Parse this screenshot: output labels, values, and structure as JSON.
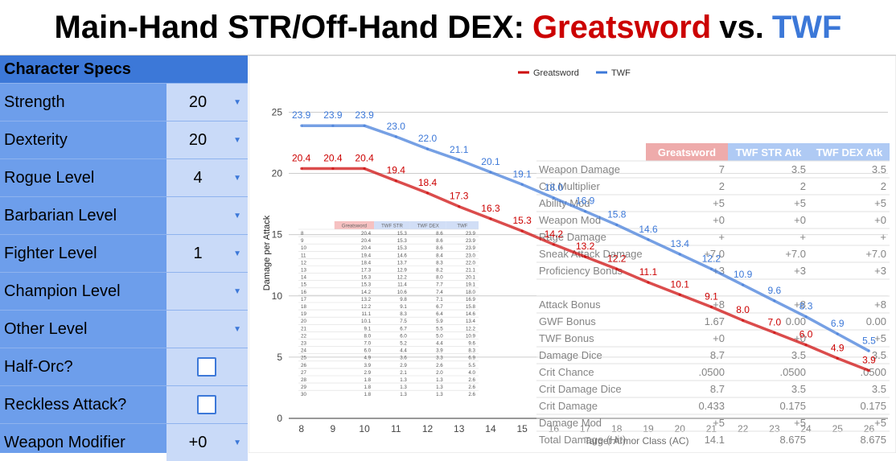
{
  "title": {
    "prefix": "Main-Hand STR/Off-Hand DEX:",
    "greatsword": "Greatsword",
    "vs": "vs.",
    "twf": "TWF"
  },
  "specs": {
    "header": "Character Specs",
    "rows": [
      {
        "label": "Strength",
        "value": "20",
        "type": "dropdown"
      },
      {
        "label": "Dexterity",
        "value": "20",
        "type": "dropdown"
      },
      {
        "label": "Rogue Level",
        "value": "4",
        "type": "dropdown"
      },
      {
        "label": "Barbarian Level",
        "value": "",
        "type": "dropdown"
      },
      {
        "label": "Fighter Level",
        "value": "1",
        "type": "dropdown"
      },
      {
        "label": "Champion Level",
        "value": "",
        "type": "dropdown"
      },
      {
        "label": "Other Level",
        "value": "",
        "type": "dropdown"
      },
      {
        "label": "Half-Orc?",
        "value": "",
        "type": "checkbox",
        "checked": false
      },
      {
        "label": "Reckless Attack?",
        "value": "",
        "type": "checkbox",
        "checked": false
      },
      {
        "label": "Weapon Modifier",
        "value": "+0",
        "type": "dropdown"
      }
    ]
  },
  "colors": {
    "greatsword": "#cc0000",
    "twf": "#3c78d8",
    "specs_bg": "#6d9eeb",
    "specs_header": "#3c78d8",
    "value_bg": "#c9daf8"
  },
  "chart_data": {
    "type": "line",
    "xlabel": "Target Armor Class (AC)",
    "ylabel": "Damage per Attack",
    "x": [
      8,
      9,
      10,
      11,
      12,
      13,
      14,
      15,
      16,
      17,
      18,
      19,
      20,
      21,
      22,
      23,
      24,
      25,
      26
    ],
    "xlim": [
      7.6,
      26.6
    ],
    "ylim": [
      0,
      27
    ],
    "yticks": [
      0,
      5,
      10,
      15,
      20,
      25
    ],
    "legend_position": "top",
    "grid": true,
    "series": [
      {
        "name": "Greatsword",
        "color": "#cc0000",
        "values": [
          20.4,
          20.4,
          20.4,
          19.4,
          18.4,
          17.3,
          16.3,
          15.3,
          14.2,
          13.2,
          12.2,
          11.1,
          10.1,
          9.1,
          8.0,
          7.0,
          6.0,
          4.9,
          3.9
        ],
        "labels": [
          "20.4",
          "20.4",
          "20.4",
          "19.4",
          "18.4",
          "17.3",
          "16.3",
          "15.3",
          "14.2",
          "13.2",
          "12.2",
          "11.1",
          "10.1",
          "9.1",
          "8.0",
          "7.0",
          "6.0",
          "4.9",
          "3.9"
        ]
      },
      {
        "name": "TWF",
        "color": "#3c78d8",
        "values": [
          23.9,
          23.9,
          23.9,
          23.0,
          22.0,
          21.1,
          20.1,
          19.1,
          18.0,
          16.9,
          15.8,
          14.6,
          13.4,
          12.2,
          10.9,
          9.6,
          8.3,
          6.9,
          5.5
        ],
        "labels": [
          "23.9",
          "23.9",
          "23.9",
          "23.0",
          "22.0",
          "21.1",
          "20.1",
          "19.1",
          "18.0",
          "16.9",
          "15.8",
          "14.6",
          "13.4",
          "12.2",
          "10.9",
          "9.6",
          "8.3",
          "6.9",
          "5.5"
        ]
      }
    ]
  },
  "overlay_table": {
    "headers": [
      "",
      "Greatsword",
      "TWF STR Atk",
      "TWF DEX Atk"
    ],
    "rows": [
      [
        "Weapon Damage",
        "7",
        "3.5",
        "3.5"
      ],
      [
        "Crit Multiplier",
        "2",
        "2",
        "2"
      ],
      [
        "Ability Mod",
        "+5",
        "+5",
        "+5"
      ],
      [
        "Weapon Mod",
        "+0",
        "+0",
        "+0"
      ],
      [
        "Rage Damage",
        "+",
        "+",
        "+"
      ],
      [
        "Sneak Attack Damage",
        "+7.0",
        "+7.0",
        "+7.0"
      ],
      [
        "Proficiency Bonus",
        "+3",
        "+3",
        "+3"
      ],
      [
        "",
        "",
        "",
        ""
      ],
      [
        "Attack Bonus",
        "+8",
        "+8",
        "+8"
      ],
      [
        "GWF Bonus",
        "1.67",
        "0.00",
        "0.00"
      ],
      [
        "TWF Bonus",
        "+0",
        "+0",
        "+5"
      ],
      [
        "Damage Dice",
        "8.7",
        "3.5",
        "3.5"
      ],
      [
        "Crit Chance",
        ".0500",
        ".0500",
        ".0500"
      ],
      [
        "Crit Damage Dice",
        "8.7",
        "3.5",
        "3.5"
      ],
      [
        "Crit Damage",
        "0.433",
        "0.175",
        "0.175"
      ],
      [
        "Damage Mod",
        "+5",
        "+5",
        "+5"
      ],
      [
        "Total Damage (Hit)",
        "14.1",
        "8.675",
        "8.675"
      ]
    ]
  },
  "mini_table": {
    "headers": [
      "",
      "Greatsword",
      "TWF STR",
      "TWF DEX",
      "TWF"
    ],
    "rows": [
      [
        "8",
        "20.4",
        "15.3",
        "8.6",
        "23.9"
      ],
      [
        "9",
        "20.4",
        "15.3",
        "8.6",
        "23.9"
      ],
      [
        "10",
        "20.4",
        "15.3",
        "8.6",
        "23.9"
      ],
      [
        "11",
        "19.4",
        "14.6",
        "8.4",
        "23.0"
      ],
      [
        "12",
        "18.4",
        "13.7",
        "8.3",
        "22.0"
      ],
      [
        "13",
        "17.3",
        "12.9",
        "8.2",
        "21.1"
      ],
      [
        "14",
        "16.3",
        "12.2",
        "8.0",
        "20.1"
      ],
      [
        "15",
        "15.3",
        "11.4",
        "7.7",
        "19.1"
      ],
      [
        "16",
        "14.2",
        "10.6",
        "7.4",
        "18.0"
      ],
      [
        "17",
        "13.2",
        "9.8",
        "7.1",
        "16.9"
      ],
      [
        "18",
        "12.2",
        "9.1",
        "6.7",
        "15.8"
      ],
      [
        "19",
        "11.1",
        "8.3",
        "6.4",
        "14.6"
      ],
      [
        "20",
        "10.1",
        "7.5",
        "5.9",
        "13.4"
      ],
      [
        "21",
        "9.1",
        "6.7",
        "5.5",
        "12.2"
      ],
      [
        "22",
        "8.0",
        "6.0",
        "5.0",
        "10.9"
      ],
      [
        "23",
        "7.0",
        "5.2",
        "4.4",
        "9.6"
      ],
      [
        "24",
        "6.0",
        "4.4",
        "3.9",
        "8.3"
      ],
      [
        "25",
        "4.9",
        "3.6",
        "3.3",
        "6.9"
      ],
      [
        "26",
        "3.9",
        "2.9",
        "2.6",
        "5.5"
      ],
      [
        "27",
        "2.9",
        "2.1",
        "2.0",
        "4.0"
      ],
      [
        "28",
        "1.8",
        "1.3",
        "1.3",
        "2.6"
      ],
      [
        "29",
        "1.8",
        "1.3",
        "1.3",
        "2.6"
      ],
      [
        "30",
        "1.8",
        "1.3",
        "1.3",
        "2.6"
      ]
    ]
  }
}
